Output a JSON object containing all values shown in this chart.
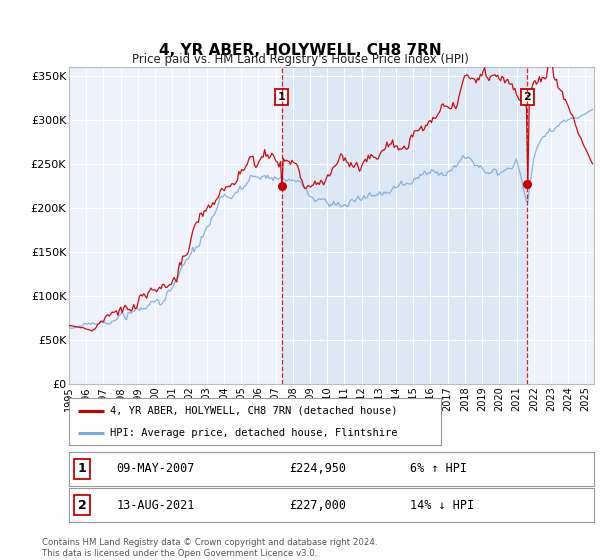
{
  "title": "4, YR ABER, HOLYWELL, CH8 7RN",
  "subtitle": "Price paid vs. HM Land Registry's House Price Index (HPI)",
  "ylim": [
    0,
    360000
  ],
  "xlim": [
    1995.0,
    2025.5
  ],
  "yticks": [
    0,
    50000,
    100000,
    150000,
    200000,
    250000,
    300000,
    350000
  ],
  "ytick_labels": [
    "£0",
    "£50K",
    "£100K",
    "£150K",
    "£200K",
    "£250K",
    "£300K",
    "£350K"
  ],
  "xticks": [
    1995,
    1996,
    1997,
    1998,
    1999,
    2000,
    2001,
    2002,
    2003,
    2004,
    2005,
    2006,
    2007,
    2008,
    2009,
    2010,
    2011,
    2012,
    2013,
    2014,
    2015,
    2016,
    2017,
    2018,
    2019,
    2020,
    2021,
    2022,
    2023,
    2024,
    2025
  ],
  "sale1_x": 2007.36,
  "sale1_y": 224950,
  "sale1_label": "1",
  "sale1_date": "09-MAY-2007",
  "sale1_price": "£224,950",
  "sale1_hpi": "6% ↑ HPI",
  "sale2_x": 2021.62,
  "sale2_y": 227000,
  "sale2_label": "2",
  "sale2_date": "13-AUG-2021",
  "sale2_price": "£227,000",
  "sale2_hpi": "14% ↓ HPI",
  "legend_line1": "4, YR ABER, HOLYWELL, CH8 7RN (detached house)",
  "legend_line2": "HPI: Average price, detached house, Flintshire",
  "red_color": "#cc0000",
  "blue_color": "#7aabe0",
  "shade_color": "#dce8f5",
  "background_color": "#edf2fb",
  "grid_color": "#ffffff",
  "outer_bg": "#ffffff",
  "footer_text": "Contains HM Land Registry data © Crown copyright and database right 2024.\nThis data is licensed under the Open Government Licence v3.0."
}
